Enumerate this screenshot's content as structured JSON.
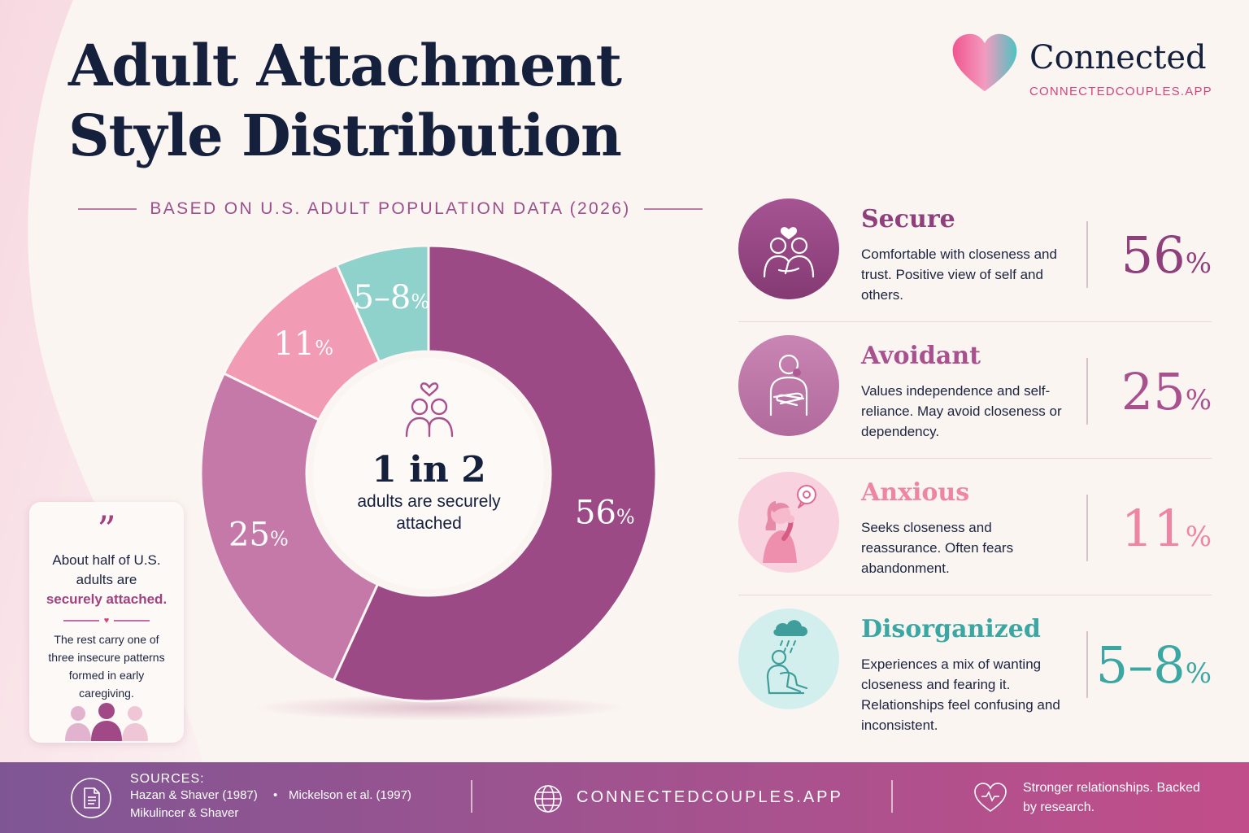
{
  "title": "Adult Attachment Style Distribution",
  "subtitle": "BASED ON U.S. ADULT POPULATION DATA (2026)",
  "brand": {
    "name": "Connected",
    "url": "CONNECTEDCOUPLES.APP"
  },
  "chart_data": {
    "type": "pie",
    "title": "Adult Attachment Style Distribution",
    "subtitle": "BASED ON U.S. ADULT POPULATION DATA (2026)",
    "series": [
      {
        "slices": [
          {
            "label": "Secure",
            "value": 56,
            "display": "56",
            "color": "#9c4a85"
          },
          {
            "label": "Avoidant",
            "value": 25,
            "display": "25",
            "color": "#c479a8"
          },
          {
            "label": "Anxious",
            "value": 11,
            "display": "11",
            "color": "#f19bb4"
          },
          {
            "label": "Disorganized",
            "value": 6.5,
            "display": "5–8",
            "color": "#8fd1cb"
          }
        ]
      }
    ],
    "percent_symbol": "%"
  },
  "center": {
    "big": "1 in 2",
    "small": "adults are securely attached"
  },
  "quote": {
    "mark": "”",
    "main": "About half of U.S. adults are",
    "strong": "securely attached.",
    "sub": "The rest carry one of three insecure patterns formed in early caregiving."
  },
  "legend": [
    {
      "name": "Secure",
      "desc": "Comfortable with closeness and trust. Positive view of self and others.",
      "pct": "56",
      "color": "#8f3f7c",
      "icon": "couple-hug-icon"
    },
    {
      "name": "Avoidant",
      "desc": "Values independence and self-reliance. May avoid closeness or dependency.",
      "pct": "25",
      "color": "#a9518f",
      "icon": "arms-crossed-person-icon"
    },
    {
      "name": "Anxious",
      "desc": "Seeks closeness and reassurance. Often fears abandonment.",
      "pct": "11",
      "color": "#ee85a4",
      "icon": "worried-woman-icon"
    },
    {
      "name": "Disorganized",
      "desc": "Experiences a mix of wanting closeness and fearing it. Relationships feel confusing and inconsistent.",
      "pct": "5–8",
      "color": "#3aa7a3",
      "icon": "rain-cloud-person-icon"
    }
  ],
  "footer": {
    "sources_heading": "SOURCES:",
    "sources": [
      "Hazan & Shaver (1987)",
      "Mickelson et al. (1997)",
      "Mikulincer & Shaver"
    ],
    "dot": "•",
    "url": "CONNECTEDCOUPLES.APP",
    "tagline": "Stronger relationships. Backed by research."
  }
}
